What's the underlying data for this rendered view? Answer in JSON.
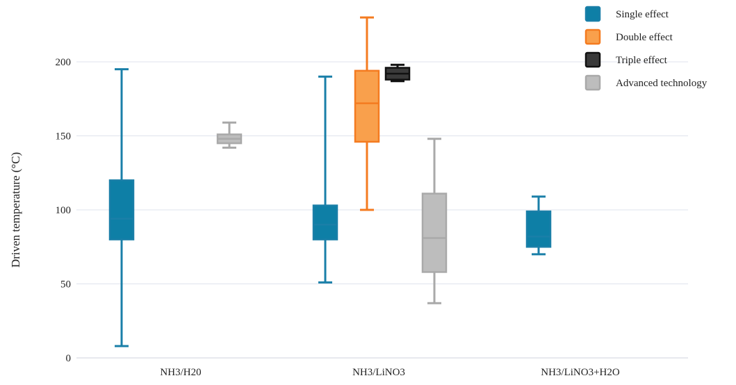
{
  "chart_data": {
    "type": "box",
    "title": "",
    "xlabel": "",
    "ylabel": "Driven temperature (°C)",
    "ylim": [
      0,
      230
    ],
    "yticks": [
      0,
      50,
      100,
      150,
      200
    ],
    "grid": true,
    "legend_position": "top-right",
    "categories": [
      "NH3/H20",
      "NH3/LiNO3",
      "NH3/LiNO3+H2O"
    ],
    "series": [
      {
        "name": "Single effect",
        "color": "#1a7fa8",
        "fill": "#0e7fa6",
        "boxes": [
          {
            "category": "NH3/H20",
            "min": 8,
            "q1": 80,
            "median": 94,
            "q3": 120,
            "max": 195
          },
          {
            "category": "NH3/LiNO3",
            "min": 51,
            "q1": 80,
            "median": 90,
            "q3": 103,
            "max": 190
          },
          {
            "category": "NH3/LiNO3+H2O",
            "min": 70,
            "q1": 75,
            "median": 82,
            "q3": 99,
            "max": 109
          }
        ]
      },
      {
        "name": "Double effect",
        "color": "#f47b20",
        "fill": "#f9a04c",
        "boxes": [
          {
            "category": "NH3/LiNO3",
            "min": 100,
            "q1": 146,
            "median": 172,
            "q3": 194,
            "max": 230
          }
        ]
      },
      {
        "name": "Triple effect",
        "color": "#111111",
        "fill": "#3a3a3a",
        "boxes": [
          {
            "category": "NH3/LiNO3",
            "min": 187,
            "q1": 188,
            "median": 192,
            "q3": 196,
            "max": 198
          }
        ]
      },
      {
        "name": "Advanced technology",
        "color": "#a9a9a9",
        "fill": "#bdbdbd",
        "boxes": [
          {
            "category": "NH3/H20",
            "min": 142,
            "q1": 145,
            "median": 148,
            "q3": 151,
            "max": 159
          },
          {
            "category": "NH3/LiNO3",
            "min": 37,
            "q1": 58,
            "median": 81,
            "q3": 111,
            "max": 148
          }
        ]
      }
    ]
  }
}
